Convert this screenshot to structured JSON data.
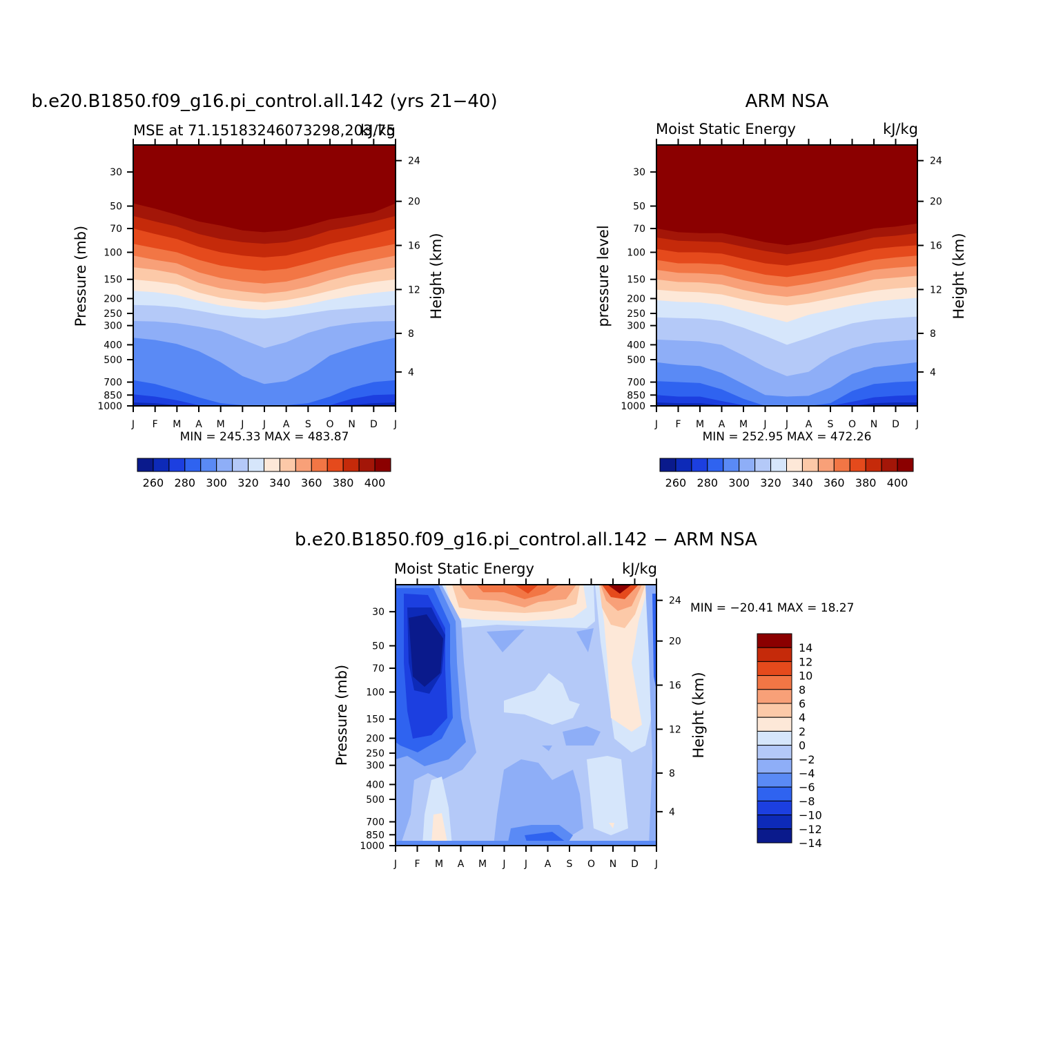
{
  "palette_main": [
    "#0a1a8c",
    "#0d2ab8",
    "#1c3fe0",
    "#2f63f0",
    "#5a8af5",
    "#8eaef7",
    "#b4c9f8",
    "#d6e6fb",
    "#fde8d8",
    "#fcc9a8",
    "#f8a078",
    "#f27645",
    "#e54a1c",
    "#c52a0a",
    "#a31608",
    "#8b0000"
  ],
  "palette_diff": [
    "#0a1a8c",
    "#0d2ab8",
    "#1c3fe0",
    "#2f63f0",
    "#5a8af5",
    "#8eaef7",
    "#b4c9f8",
    "#d6e6fb",
    "#fde8d8",
    "#fcc9a8",
    "#f8a078",
    "#f27645",
    "#e54a1c",
    "#c52a0a",
    "#8b0000"
  ],
  "months": [
    "J",
    "F",
    "M",
    "A",
    "M",
    "J",
    "J",
    "A",
    "S",
    "O",
    "N",
    "D",
    "J"
  ],
  "pressure_ticks": [
    "30",
    "50",
    "70",
    "100",
    "150",
    "200",
    "250",
    "300",
    "400",
    "500",
    "700",
    "850",
    "1000"
  ],
  "height_ticks": [
    "24",
    "20",
    "16",
    "12",
    "8",
    "4"
  ],
  "panel_left": {
    "title": "b.e20.B1850.f09_g16.pi_control.all.142 (yrs 21−40)",
    "subtitle_left": "MSE at 71.15183246073298,203.75",
    "subtitle_right": "kJ/kg",
    "ylabel": "Pressure (mb)",
    "ylabel_right": "Height (km)",
    "minmax": "MIN = 245.33 MAX = 483.87",
    "colorbar_labels": [
      "260",
      "280",
      "300",
      "320",
      "340",
      "360",
      "380",
      "400"
    ]
  },
  "panel_right": {
    "title": "ARM NSA",
    "subtitle_left": "Moist Static Energy",
    "subtitle_right": "kJ/kg",
    "ylabel": "pressure level",
    "ylabel_right": "Height (km)",
    "minmax": "MIN = 252.95 MAX = 472.26",
    "colorbar_labels": [
      "260",
      "280",
      "300",
      "320",
      "340",
      "360",
      "380",
      "400"
    ]
  },
  "panel_diff": {
    "title": "b.e20.B1850.f09_g16.pi_control.all.142 − ARM NSA",
    "subtitle_left": "Moist Static Energy",
    "subtitle_right": "kJ/kg",
    "ylabel": "Pressure (mb)",
    "ylabel_right": "Height (km)",
    "minmax": "MIN = −20.41 MAX =  18.27",
    "colorbar_labels": [
      "14",
      "12",
      "10",
      "8",
      "6",
      "4",
      "2",
      "0",
      "−2",
      "−4",
      "−6",
      "−8",
      "−10",
      "−12",
      "−14"
    ]
  },
  "chart_data": [
    {
      "type": "heatmap",
      "title": "b.e20.B1850.f09_g16.pi_control.all.142 (yrs 21−40)",
      "subtitle": "MSE at 71.15183246073298,203.75",
      "units": "kJ/kg",
      "x": [
        "J",
        "F",
        "M",
        "A",
        "M",
        "J",
        "J",
        "A",
        "S",
        "O",
        "N",
        "D",
        "J"
      ],
      "y_pressure_mb": [
        30,
        50,
        70,
        100,
        150,
        200,
        250,
        300,
        400,
        500,
        700,
        850,
        1000
      ],
      "colorbar_levels": [
        260,
        270,
        280,
        290,
        300,
        310,
        320,
        330,
        340,
        350,
        360,
        370,
        380,
        390,
        400
      ],
      "z_min": 245.33,
      "z_max": 483.87,
      "ylabel": "Pressure (mb)",
      "ylabel_right": "Height (km)"
    },
    {
      "type": "heatmap",
      "title": "ARM NSA",
      "subtitle": "Moist Static Energy",
      "units": "kJ/kg",
      "x": [
        "J",
        "F",
        "M",
        "A",
        "M",
        "J",
        "J",
        "A",
        "S",
        "O",
        "N",
        "D",
        "J"
      ],
      "y_pressure_mb": [
        30,
        50,
        70,
        100,
        150,
        200,
        250,
        300,
        400,
        500,
        700,
        850,
        1000
      ],
      "colorbar_levels": [
        260,
        270,
        280,
        290,
        300,
        310,
        320,
        330,
        340,
        350,
        360,
        370,
        380,
        390,
        400
      ],
      "z_min": 252.95,
      "z_max": 472.26,
      "ylabel": "pressure level",
      "ylabel_right": "Height (km)"
    },
    {
      "type": "heatmap",
      "title": "b.e20.B1850.f09_g16.pi_control.all.142 − ARM NSA",
      "subtitle": "Moist Static Energy",
      "units": "kJ/kg",
      "x": [
        "J",
        "F",
        "M",
        "A",
        "M",
        "J",
        "J",
        "A",
        "S",
        "O",
        "N",
        "D",
        "J"
      ],
      "y_pressure_mb": [
        30,
        50,
        70,
        100,
        150,
        200,
        250,
        300,
        400,
        500,
        700,
        850,
        1000
      ],
      "colorbar_levels": [
        -14,
        -12,
        -10,
        -8,
        -6,
        -4,
        -2,
        0,
        2,
        4,
        6,
        8,
        10,
        12,
        14
      ],
      "z_min": -20.41,
      "z_max": 18.27,
      "ylabel": "Pressure (mb)",
      "ylabel_right": "Height (km)"
    }
  ]
}
